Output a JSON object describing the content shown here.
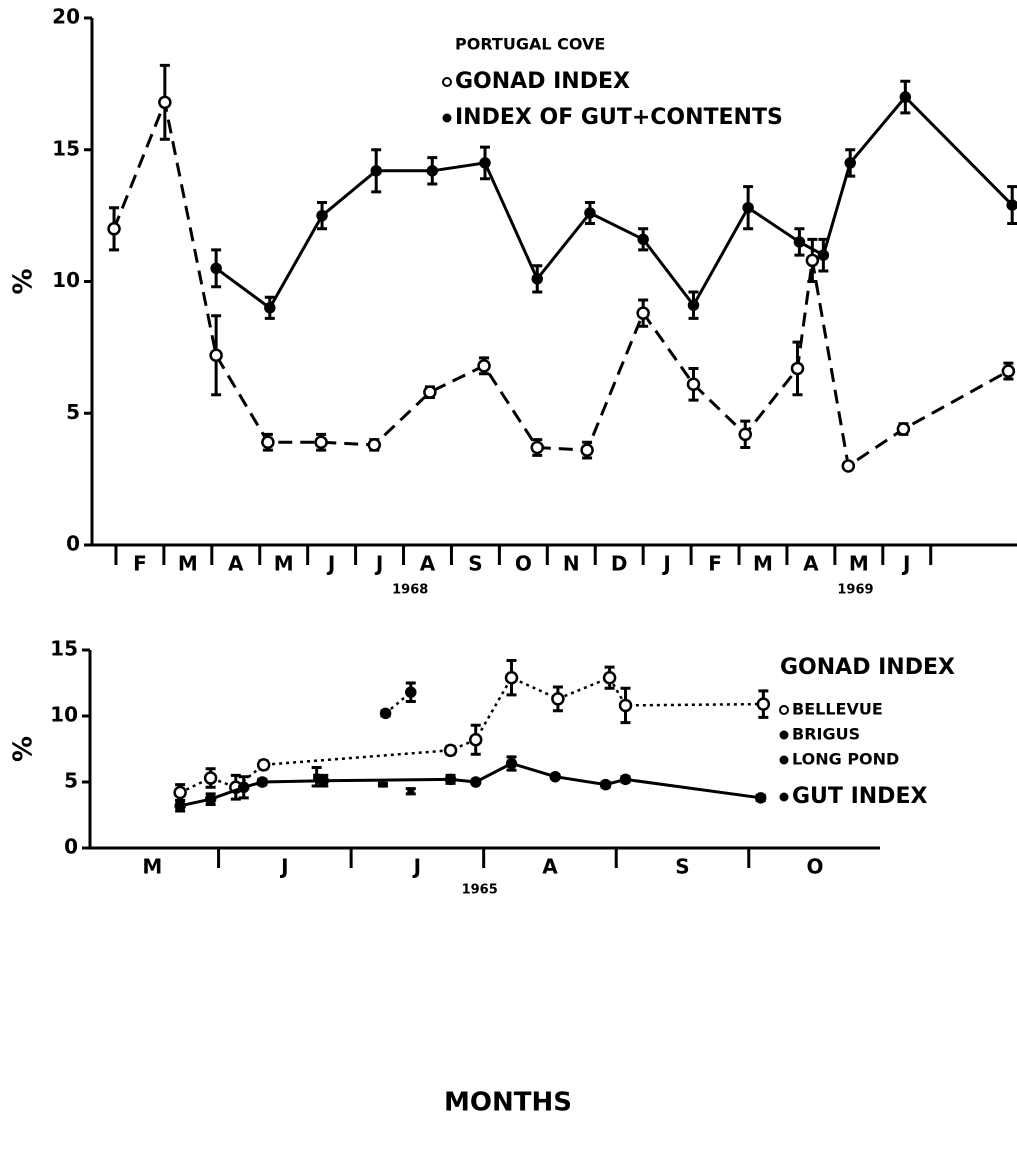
{
  "chart_data": [
    {
      "type": "line",
      "legend_title": "PORTUGAL COVE",
      "ylabel": "%",
      "ylim": [
        0,
        20
      ],
      "yticks": [
        0,
        5,
        10,
        15,
        20
      ],
      "xlim": [
        0.5,
        19.8
      ],
      "xticks": [
        {
          "value": 1.5,
          "label": "F"
        },
        {
          "value": 2.5,
          "label": "M"
        },
        {
          "value": 3.5,
          "label": "A"
        },
        {
          "value": 4.5,
          "label": "M"
        },
        {
          "value": 5.5,
          "label": "J"
        },
        {
          "value": 6.5,
          "label": "J"
        },
        {
          "value": 7.5,
          "label": "A"
        },
        {
          "value": 8.5,
          "label": "S"
        },
        {
          "value": 9.5,
          "label": "O"
        },
        {
          "value": 10.5,
          "label": "N"
        },
        {
          "value": 11.5,
          "label": "D"
        },
        {
          "value": 12.5,
          "label": "J"
        },
        {
          "value": 13.5,
          "label": "F"
        },
        {
          "value": 14.5,
          "label": "M"
        },
        {
          "value": 15.5,
          "label": "A"
        },
        {
          "value": 16.5,
          "label": "M"
        },
        {
          "value": 17.5,
          "label": "J"
        }
      ],
      "annotations": [
        {
          "text": "1968",
          "x": 7.14
        },
        {
          "text": "1969",
          "x": 16.43
        }
      ],
      "series": [
        {
          "name": "GONAD INDEX",
          "color": "#000000",
          "marker": "open",
          "line": "dashed",
          "x": [
            0.96,
            2.02,
            3.09,
            4.17,
            5.28,
            6.39,
            7.55,
            8.68,
            9.79,
            10.83,
            12.0,
            13.05,
            14.13,
            15.22,
            15.53,
            16.28,
            17.43,
            19.62
          ],
          "values": [
            12.0,
            16.8,
            7.2,
            3.9,
            3.9,
            3.8,
            5.8,
            6.8,
            3.7,
            3.6,
            8.8,
            6.1,
            4.2,
            6.7,
            10.8,
            3.0,
            4.4,
            6.6
          ],
          "errors": [
            0.8,
            1.4,
            1.5,
            0.3,
            0.3,
            0.2,
            0.2,
            0.3,
            0.3,
            0.3,
            0.5,
            0.6,
            0.5,
            1.0,
            0.8,
            0.1,
            0.2,
            0.3
          ]
        },
        {
          "name": "INDEX OF GUT+CONTENTS",
          "color": "#000000",
          "marker": "filled",
          "line": "solid",
          "x": [
            3.09,
            4.21,
            5.3,
            6.43,
            7.6,
            8.7,
            9.79,
            10.89,
            12.0,
            13.05,
            14.19,
            15.26,
            15.76,
            16.32,
            17.47,
            19.7
          ],
          "values": [
            10.5,
            9.0,
            12.5,
            14.2,
            14.2,
            14.5,
            10.1,
            12.6,
            11.6,
            9.1,
            12.8,
            11.5,
            11.0,
            14.5,
            17.0,
            12.9
          ],
          "errors": [
            0.7,
            0.4,
            0.5,
            0.8,
            0.5,
            0.6,
            0.5,
            0.4,
            0.4,
            0.5,
            0.8,
            0.5,
            0.6,
            0.5,
            0.6,
            0.7
          ]
        }
      ]
    },
    {
      "type": "line",
      "legend_title": "GONAD INDEX",
      "ylabel": "%",
      "xlabel": "MONTHS",
      "ylim": [
        0,
        15
      ],
      "yticks": [
        0,
        5,
        10,
        15
      ],
      "xlim": [
        4.03,
        9.99
      ],
      "xticks": [
        {
          "value": 4.5,
          "label": "M"
        },
        {
          "value": 5.5,
          "label": "J"
        },
        {
          "value": 6.5,
          "label": "J"
        },
        {
          "value": 7.5,
          "label": "A"
        },
        {
          "value": 8.5,
          "label": "S"
        },
        {
          "value": 9.5,
          "label": "O"
        }
      ],
      "annotations": [
        {
          "text": "1965",
          "x": 6.97
        }
      ],
      "series": [
        {
          "name": "BELLEVUE",
          "color": "#000000",
          "marker": "open",
          "line": "dotted",
          "x": [
            4.71,
            4.94,
            5.13,
            5.34,
            6.75,
            6.94,
            7.21,
            7.56,
            7.95,
            8.07,
            9.11
          ],
          "values": [
            4.2,
            5.3,
            4.6,
            6.3,
            7.4,
            8.2,
            12.9,
            11.3,
            12.9,
            10.8,
            10.9
          ],
          "errors": [
            0.6,
            0.7,
            0.9,
            0.3,
            0.3,
            1.1,
            1.3,
            0.9,
            0.8,
            1.3,
            1.0
          ]
        },
        {
          "name": "BRIGUS",
          "color": "#000000",
          "marker": "filled",
          "line": "dotted",
          "x": [
            6.26,
            6.45
          ],
          "values": [
            10.2,
            11.8
          ],
          "errors": [
            0.2,
            0.7
          ]
        },
        {
          "name": "LONG POND",
          "color": "#000000",
          "marker": "square",
          "line": "none",
          "x": [
            5.74,
            6.24,
            6.45
          ],
          "values": [
            5.4,
            4.8,
            4.3
          ],
          "errors": [
            0.7,
            0.1,
            0.2
          ]
        },
        {
          "name": "GUT INDEX",
          "color": "#000000",
          "marker": "filled",
          "line": "solid",
          "x": [
            4.71,
            4.94,
            5.19,
            5.33,
            5.79,
            6.75,
            6.94,
            7.21,
            7.54,
            7.92,
            8.07,
            9.09
          ],
          "values": [
            3.2,
            3.7,
            4.6,
            5.0,
            5.1,
            5.2,
            5.0,
            6.4,
            5.4,
            4.8,
            5.2,
            3.8
          ],
          "errors": [
            0.4,
            0.4,
            0.8,
            0.2,
            0.4,
            0.3,
            0.1,
            0.5,
            0.1,
            0.2,
            0.2,
            0.2
          ]
        }
      ]
    }
  ]
}
